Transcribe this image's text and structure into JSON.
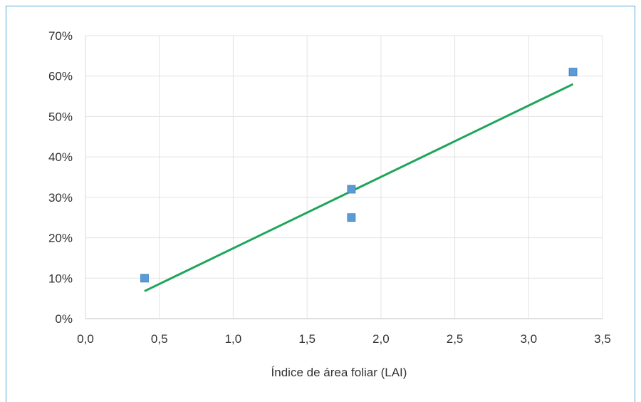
{
  "chart_data": {
    "type": "scatter",
    "title": "",
    "xlabel": "Índice de área foliar (LAI)",
    "ylabel": "",
    "xlim": [
      0,
      3.5
    ],
    "ylim": [
      0,
      0.7
    ],
    "x_ticks": [
      "0,0",
      "0,5",
      "1,0",
      "1,5",
      "2,0",
      "2,5",
      "3,0",
      "3,5"
    ],
    "y_ticks": [
      "0%",
      "10%",
      "20%",
      "30%",
      "40%",
      "50%",
      "60%",
      "70%"
    ],
    "grid": true,
    "series": [
      {
        "points": [
          {
            "x": 0.4,
            "y": 0.1
          },
          {
            "x": 1.8,
            "y": 0.32
          },
          {
            "x": 1.8,
            "y": 0.25
          },
          {
            "x": 3.3,
            "y": 0.61
          }
        ],
        "marker": "square",
        "color": "#5b9bd5"
      }
    ],
    "trendline": {
      "type": "linear",
      "from": {
        "x": 0.4,
        "y": 0.068
      },
      "to": {
        "x": 3.3,
        "y": 0.58
      },
      "color": "#1fa55a"
    }
  }
}
